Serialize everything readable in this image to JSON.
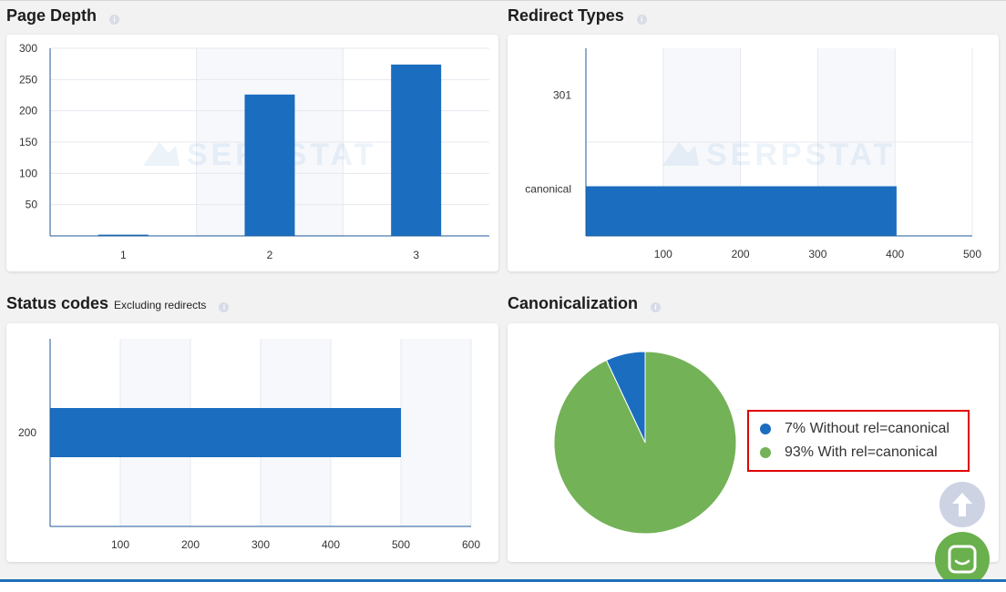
{
  "watermark": "SERPSTAT",
  "colors": {
    "bar": "#1b6dbf",
    "green": "#73b257",
    "blue": "#1b6dbf",
    "grid": "#e6e8ef",
    "axis": "#1f5a9a"
  },
  "page_depth": {
    "title": "Page Depth",
    "chart_data": {
      "type": "bar",
      "categories": [
        "1",
        "2",
        "3"
      ],
      "values": [
        2,
        226,
        274
      ],
      "ylim": [
        0,
        300
      ],
      "yticks": [
        50,
        100,
        150,
        200,
        250,
        300
      ]
    }
  },
  "redirect_types": {
    "title": "Redirect Types",
    "chart_data": {
      "type": "bar",
      "orientation": "horizontal",
      "categories": [
        "301",
        "canonical"
      ],
      "values": [
        0,
        402
      ],
      "xlim": [
        0,
        500
      ],
      "xticks": [
        100,
        200,
        300,
        400,
        500
      ]
    }
  },
  "status_codes": {
    "title": "Status codes",
    "subtitle": "Excluding redirects",
    "chart_data": {
      "type": "bar",
      "orientation": "horizontal",
      "categories": [
        "200"
      ],
      "values": [
        500
      ],
      "xlim": [
        0,
        600
      ],
      "xticks": [
        100,
        200,
        300,
        400,
        500,
        600
      ]
    }
  },
  "canonicalization": {
    "title": "Canonicalization",
    "chart_data": {
      "type": "pie",
      "slices": [
        {
          "label": "Without rel=canonical",
          "percent": 7,
          "color": "#1b6dbf"
        },
        {
          "label": "With rel=canonical",
          "percent": 93,
          "color": "#73b257"
        }
      ]
    },
    "legend": [
      "7% Without rel=canonical",
      "93% With rel=canonical"
    ]
  },
  "floating": {
    "scroll_up_icon": "arrow-up-icon",
    "chat_icon": "chat-icon"
  }
}
